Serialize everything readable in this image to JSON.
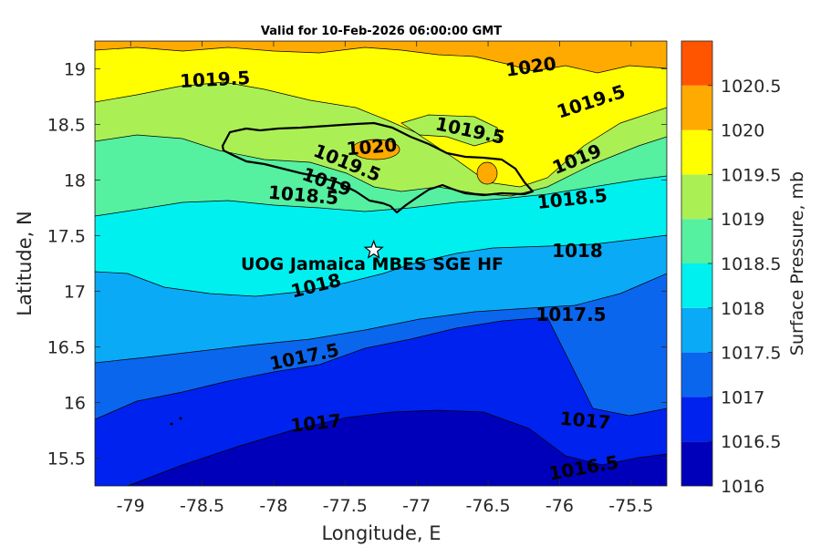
{
  "title": "Valid for 10-Feb-2026 06:00:00 GMT",
  "map": {
    "xlabel": "Longitude, E",
    "ylabel": "Latitude, N",
    "xlim": [
      -79.25,
      -75.25
    ],
    "ylim": [
      15.25,
      19.25
    ],
    "xticks": [
      "-79",
      "-78.5",
      "-78",
      "-77.5",
      "-77",
      "-76.5",
      "-76",
      "-75.5"
    ],
    "yticks": [
      "19",
      "18.5",
      "18",
      "17.5",
      "17",
      "16.5",
      "16",
      "15.5"
    ],
    "contour_labels": [
      "1020",
      "1019.5",
      "1019.5",
      "1019.5",
      "1020",
      "1019.5",
      "1019",
      "1019",
      "1018.5",
      "1018.5",
      "1018",
      "1018",
      "1017.5",
      "1017.5",
      "1017",
      "1017",
      "1016.5"
    ],
    "site": {
      "name": "UOG Jamaica MBES SGE HF",
      "lon": -77.3,
      "lat": 17.37,
      "marker": "star-icon"
    },
    "land": "Jamaica"
  },
  "colorbar": {
    "label": "Surface Pressure, mb",
    "ticks": [
      "1020.5",
      "1020",
      "1019.5",
      "1019",
      "1018.5",
      "1018",
      "1017.5",
      "1017",
      "1016.5",
      "1016"
    ],
    "levels": [
      {
        "min": 1016,
        "max": 1016.5,
        "color": "#0000bb"
      },
      {
        "min": 1016.5,
        "max": 1017,
        "color": "#0022ee"
      },
      {
        "min": 1017,
        "max": 1017.5,
        "color": "#0b66ee"
      },
      {
        "min": 1017.5,
        "max": 1018,
        "color": "#0aaaf6"
      },
      {
        "min": 1018,
        "max": 1018.5,
        "color": "#00f0f0"
      },
      {
        "min": 1018.5,
        "max": 1019,
        "color": "#55f0a0"
      },
      {
        "min": 1019,
        "max": 1019.5,
        "color": "#aaf055"
      },
      {
        "min": 1019.5,
        "max": 1020,
        "color": "#ffff00"
      },
      {
        "min": 1020,
        "max": 1020.5,
        "color": "#ffaa00"
      },
      {
        "min": 1020.5,
        "max": 1021,
        "color": "#ff5500"
      }
    ]
  }
}
